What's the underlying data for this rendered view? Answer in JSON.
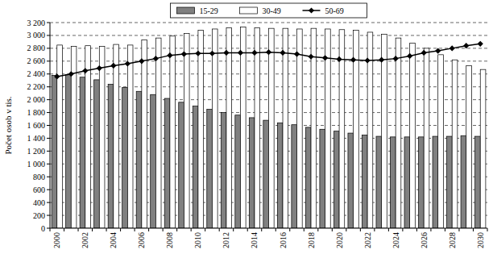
{
  "chart_data": {
    "type": "bar",
    "y_label": "Počet osob v tis.",
    "categories": [
      "2000",
      null,
      "2002",
      null,
      "2004",
      null,
      "2006",
      null,
      "2008",
      null,
      "2010",
      null,
      "2012",
      null,
      "2014",
      null,
      "2016",
      null,
      "2018",
      null,
      "2020",
      null,
      "2022",
      null,
      "2024",
      null,
      "2026",
      null,
      "2028",
      null,
      "2030"
    ],
    "series": [
      {
        "name": "15-29",
        "type": "bar",
        "color": "#808080",
        "values": [
          2380,
          2390,
          2350,
          2310,
          2240,
          2190,
          2130,
          2080,
          2020,
          1960,
          1900,
          1850,
          1800,
          1760,
          1720,
          1680,
          1640,
          1610,
          1570,
          1540,
          1510,
          1480,
          1450,
          1430,
          1420,
          1420,
          1420,
          1430,
          1430,
          1440,
          1430
        ]
      },
      {
        "name": "30-49",
        "type": "bar",
        "color": "#ffffff",
        "values": [
          2850,
          2830,
          2840,
          2830,
          2860,
          2850,
          2930,
          2960,
          2990,
          3030,
          3080,
          3100,
          3120,
          3130,
          3120,
          3110,
          3110,
          3100,
          3110,
          3100,
          3090,
          3080,
          3050,
          3020,
          2960,
          2880,
          2800,
          2700,
          2620,
          2530,
          2470
        ]
      },
      {
        "name": "50-69",
        "type": "line",
        "color": "#000000",
        "marker": "diamond",
        "line_style": "solid",
        "values": [
          2360,
          2400,
          2450,
          2490,
          2530,
          2560,
          2600,
          2640,
          2690,
          2710,
          2720,
          2720,
          2730,
          2730,
          2730,
          2740,
          2730,
          2710,
          2670,
          2650,
          2630,
          2620,
          2610,
          2620,
          2640,
          2680,
          2730,
          2760,
          2800,
          2840,
          2870
        ]
      }
    ],
    "ylim": [
      0,
      3200
    ],
    "yticks": [
      0,
      200,
      400,
      600,
      800,
      {
        "value": 1000,
        "label": "1 000"
      },
      {
        "value": 1200,
        "label": "1 200"
      },
      {
        "value": 1400,
        "label": "1 400"
      },
      {
        "value": 1600,
        "label": "1 600"
      },
      {
        "value": 1800,
        "label": "1 800"
      },
      {
        "value": 2000,
        "label": "2 000"
      },
      {
        "value": 2200,
        "label": "2 200"
      },
      {
        "value": 2400,
        "label": "2 400"
      },
      {
        "value": 2600,
        "label": "2 600"
      },
      {
        "value": 2800,
        "label": "2 800"
      },
      {
        "value": 3000,
        "label": "3 000"
      },
      {
        "value": 3200,
        "label": "3 200"
      }
    ],
    "grid": true,
    "legend": "top"
  }
}
